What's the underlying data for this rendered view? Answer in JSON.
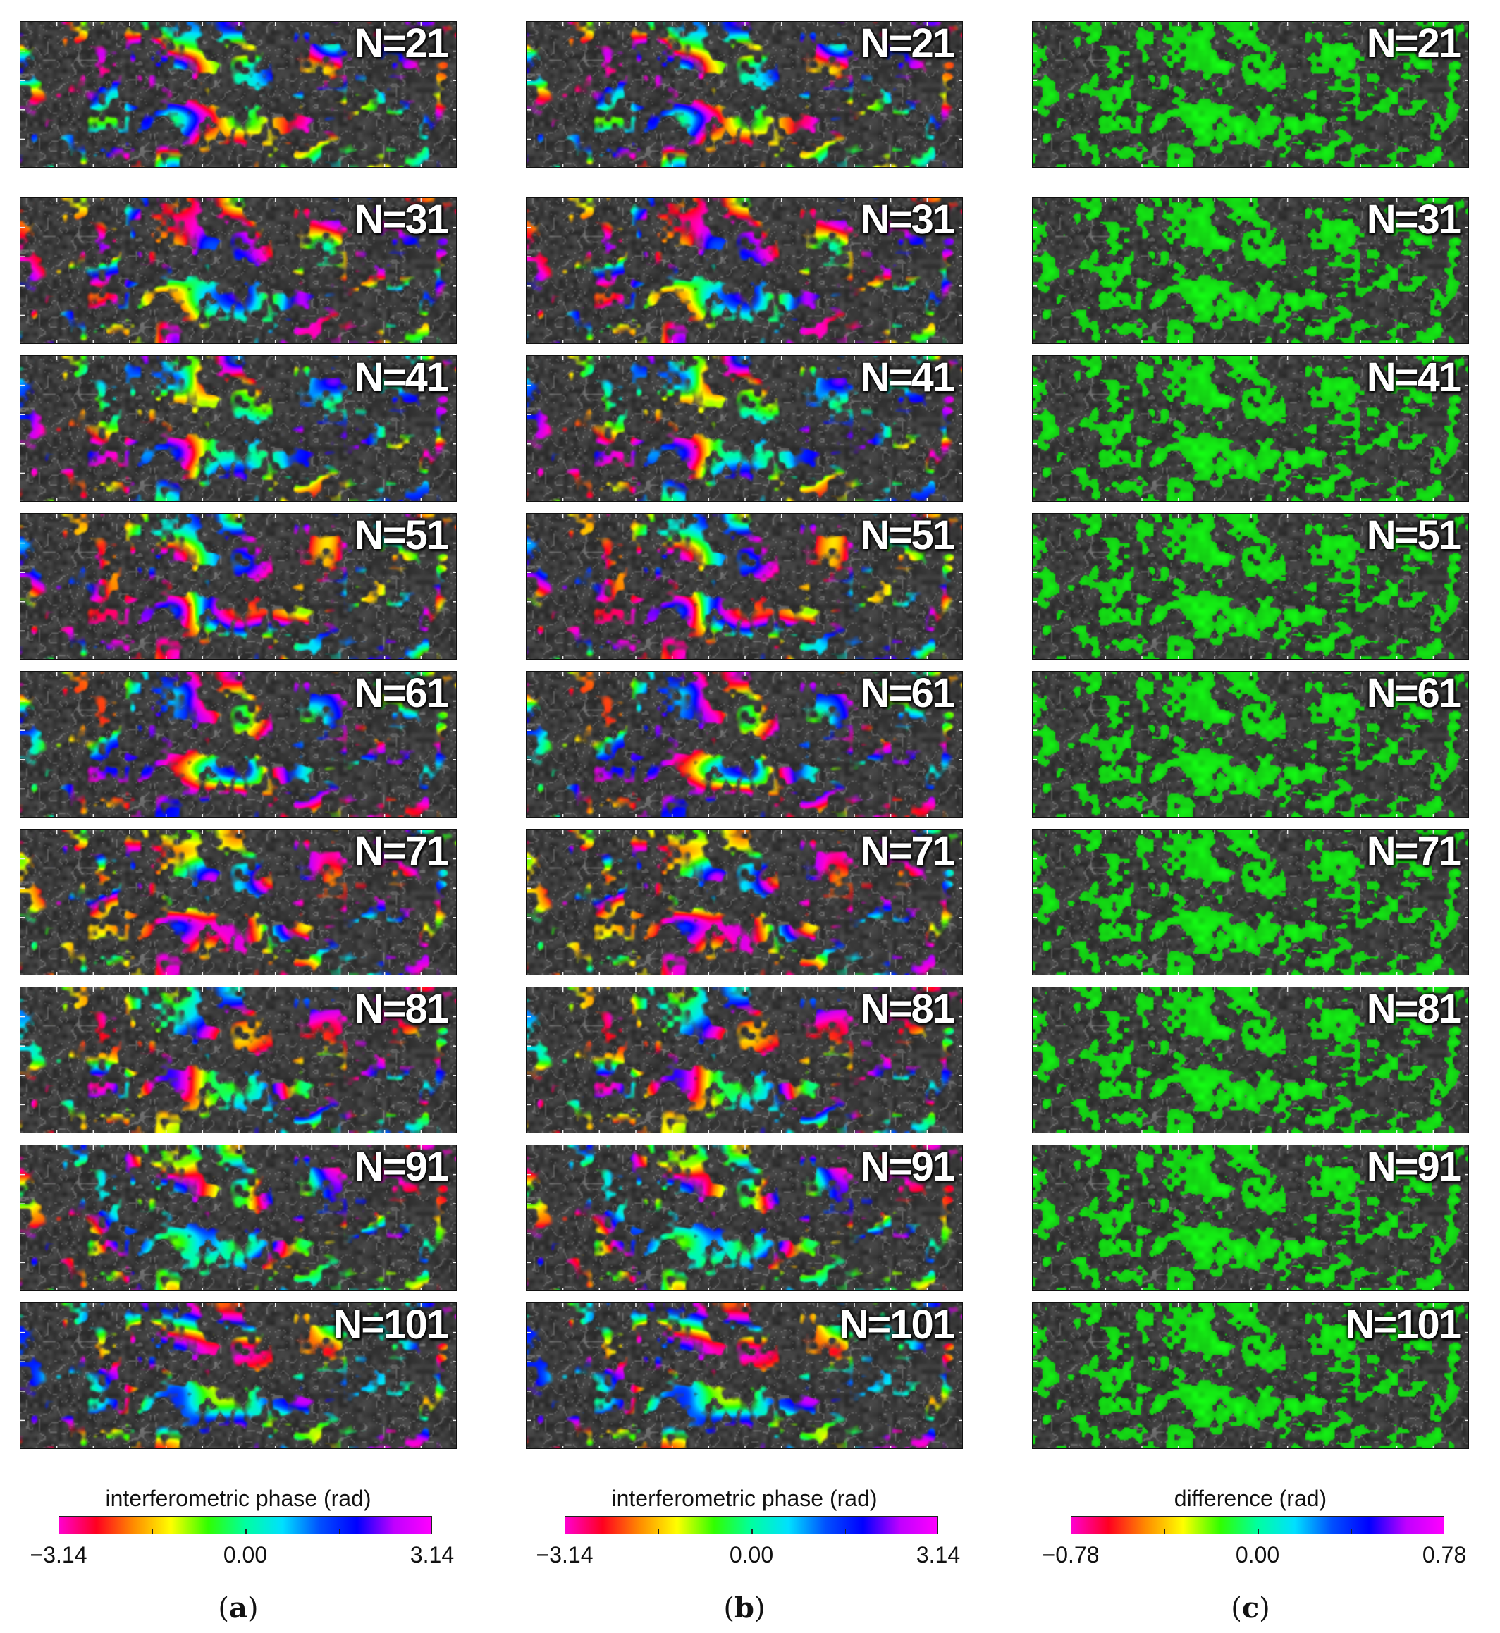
{
  "rows": [
    "N=21",
    "N=31",
    "N=41",
    "N=51",
    "N=61",
    "N=71",
    "N=81",
    "N=91",
    "N=101"
  ],
  "columns": [
    {
      "id": "a",
      "mode": "phase",
      "colorbar": {
        "title": "interferometric phase (rad)",
        "min_label": "−3.14",
        "mid_label": "0.00",
        "max_label": "3.14",
        "colors": [
          "#ff00d0",
          "#ff0020",
          "#ff8c00",
          "#ffff00",
          "#30ff00",
          "#00ffa0",
          "#00e0ff",
          "#0050ff",
          "#0000ff",
          "#c000ff",
          "#ff00ff"
        ]
      },
      "sub_label": "(a)",
      "sub_letter": "a"
    },
    {
      "id": "b",
      "mode": "phase",
      "colorbar": {
        "title": "interferometric phase (rad)",
        "min_label": "−3.14",
        "mid_label": "0.00",
        "max_label": "3.14",
        "colors": [
          "#ff00d0",
          "#ff0020",
          "#ff8c00",
          "#ffff00",
          "#30ff00",
          "#00ffa0",
          "#00e0ff",
          "#0050ff",
          "#0000ff",
          "#c000ff",
          "#ff00ff"
        ]
      },
      "sub_label": "(b)",
      "sub_letter": "b"
    },
    {
      "id": "c",
      "mode": "difference",
      "colorbar": {
        "title": "difference (rad)",
        "min_label": "−0.78",
        "mid_label": "0.00",
        "max_label": "0.78",
        "colors": [
          "#ff00d0",
          "#ff0020",
          "#ff8c00",
          "#ffff00",
          "#30ff00",
          "#00ffa0",
          "#00e0ff",
          "#0050ff",
          "#0000ff",
          "#c000ff",
          "#ff00ff"
        ]
      },
      "sub_label": "(c)",
      "sub_letter": "c"
    }
  ]
}
